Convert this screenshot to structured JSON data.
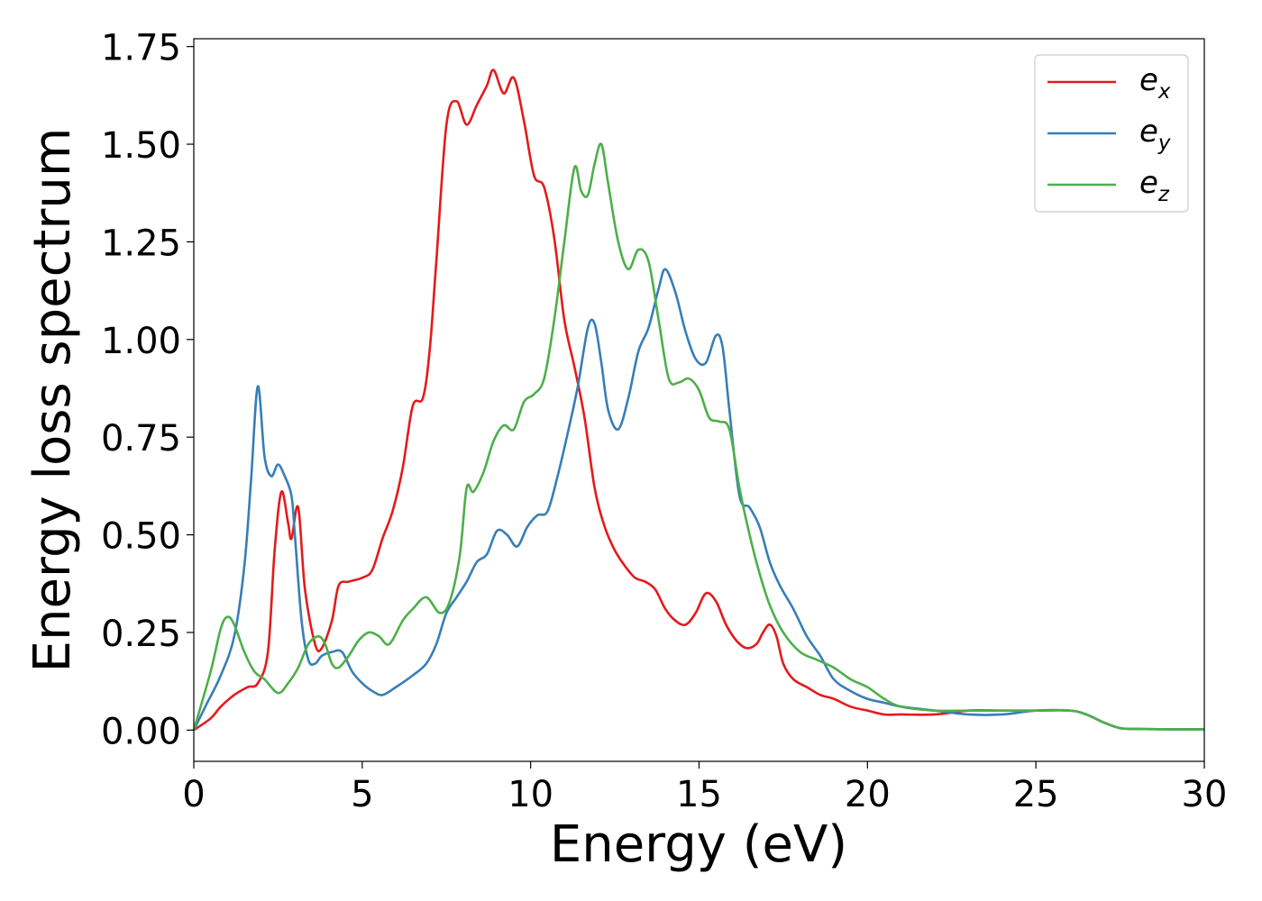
{
  "chart_data": {
    "type": "line",
    "xlabel": "Energy (eV)",
    "ylabel": "Energy loss spectrum",
    "xlim": [
      0,
      30
    ],
    "ylim": [
      -0.08,
      1.77
    ],
    "xticks": [
      0,
      5,
      10,
      15,
      20,
      25,
      30
    ],
    "xtick_labels": [
      "0",
      "5",
      "10",
      "15",
      "20",
      "25",
      "30"
    ],
    "yticks": [
      0.0,
      0.25,
      0.5,
      0.75,
      1.0,
      1.25,
      1.5,
      1.75
    ],
    "ytick_labels": [
      "0.00",
      "0.25",
      "0.50",
      "0.75",
      "1.00",
      "1.25",
      "1.50",
      "1.75"
    ],
    "grid": false,
    "legend_position": "top-right",
    "series": [
      {
        "name": "e_x",
        "label_base": "e",
        "label_sub": "x",
        "color": "#e41a1c",
        "x": [
          0,
          0.5,
          0.8,
          1.2,
          1.6,
          1.9,
          2.2,
          2.4,
          2.6,
          2.8,
          2.9,
          3.1,
          3.3,
          3.6,
          3.8,
          4.1,
          4.3,
          4.6,
          5.0,
          5.3,
          5.6,
          5.9,
          6.2,
          6.5,
          6.8,
          7.0,
          7.2,
          7.5,
          7.8,
          8.1,
          8.4,
          8.7,
          8.9,
          9.2,
          9.5,
          9.8,
          10.1,
          10.4,
          10.7,
          11.0,
          11.3,
          11.6,
          11.9,
          12.2,
          12.5,
          12.8,
          13.1,
          13.4,
          13.7,
          14.0,
          14.3,
          14.6,
          14.9,
          15.2,
          15.5,
          15.8,
          16.1,
          16.4,
          16.7,
          16.9,
          17.1,
          17.3,
          17.5,
          17.8,
          18.2,
          18.6,
          19.0,
          19.5,
          20.0,
          20.5,
          21.0,
          22.0,
          23.0,
          24.0,
          25.0,
          26.0,
          26.5,
          27.0,
          27.5,
          28.0,
          29.0,
          30.0
        ],
        "y": [
          0,
          0.03,
          0.06,
          0.09,
          0.11,
          0.12,
          0.2,
          0.46,
          0.61,
          0.53,
          0.49,
          0.57,
          0.36,
          0.22,
          0.21,
          0.28,
          0.37,
          0.38,
          0.39,
          0.41,
          0.49,
          0.56,
          0.67,
          0.83,
          0.85,
          0.97,
          1.2,
          1.55,
          1.61,
          1.55,
          1.6,
          1.65,
          1.69,
          1.63,
          1.67,
          1.56,
          1.42,
          1.39,
          1.26,
          1.05,
          0.93,
          0.8,
          0.62,
          0.52,
          0.46,
          0.42,
          0.39,
          0.38,
          0.36,
          0.31,
          0.28,
          0.27,
          0.3,
          0.35,
          0.33,
          0.27,
          0.23,
          0.21,
          0.22,
          0.25,
          0.27,
          0.24,
          0.17,
          0.13,
          0.11,
          0.09,
          0.08,
          0.06,
          0.05,
          0.04,
          0.04,
          0.04,
          0.05,
          0.05,
          0.05,
          0.05,
          0.04,
          0.02,
          0.005,
          0.003,
          0.002,
          0.002
        ]
      },
      {
        "name": "e_y",
        "label_base": "e",
        "label_sub": "y",
        "color": "#377eb8",
        "x": [
          0,
          0.4,
          0.8,
          1.2,
          1.5,
          1.7,
          1.9,
          2.1,
          2.3,
          2.5,
          2.7,
          2.9,
          3.0,
          3.2,
          3.4,
          3.6,
          3.8,
          4.1,
          4.4,
          4.7,
          5.0,
          5.3,
          5.6,
          6.0,
          6.5,
          6.9,
          7.2,
          7.5,
          7.8,
          8.1,
          8.4,
          8.7,
          9.0,
          9.3,
          9.6,
          9.9,
          10.2,
          10.5,
          10.8,
          11.1,
          11.4,
          11.7,
          11.9,
          12.1,
          12.3,
          12.6,
          12.9,
          13.2,
          13.5,
          13.8,
          14.0,
          14.3,
          14.6,
          14.9,
          15.2,
          15.5,
          15.7,
          15.9,
          16.2,
          16.5,
          16.8,
          17.1,
          17.4,
          17.8,
          18.2,
          18.6,
          19.0,
          19.5,
          20.0,
          20.5,
          21.0,
          22.0,
          23.0,
          24.0,
          25.0,
          26.0,
          26.5,
          27.0,
          27.5,
          28.0,
          29.0,
          30.0
        ],
        "y": [
          0,
          0.07,
          0.14,
          0.24,
          0.42,
          0.64,
          0.88,
          0.7,
          0.65,
          0.68,
          0.65,
          0.6,
          0.5,
          0.28,
          0.18,
          0.17,
          0.19,
          0.2,
          0.2,
          0.15,
          0.12,
          0.1,
          0.09,
          0.11,
          0.14,
          0.17,
          0.22,
          0.3,
          0.34,
          0.38,
          0.43,
          0.45,
          0.51,
          0.5,
          0.47,
          0.52,
          0.55,
          0.56,
          0.65,
          0.76,
          0.88,
          1.03,
          1.04,
          0.94,
          0.82,
          0.77,
          0.85,
          0.97,
          1.03,
          1.13,
          1.18,
          1.12,
          1.02,
          0.95,
          0.94,
          1.01,
          0.98,
          0.82,
          0.6,
          0.57,
          0.52,
          0.43,
          0.37,
          0.31,
          0.24,
          0.19,
          0.13,
          0.1,
          0.08,
          0.07,
          0.06,
          0.05,
          0.04,
          0.04,
          0.05,
          0.05,
          0.04,
          0.02,
          0.005,
          0.003,
          0.002,
          0.002
        ]
      },
      {
        "name": "e_z",
        "label_base": "e",
        "label_sub": "z",
        "color": "#4daf4a",
        "x": [
          0,
          0.5,
          0.8,
          1.0,
          1.2,
          1.5,
          1.8,
          2.1,
          2.5,
          2.8,
          3.1,
          3.4,
          3.7,
          3.9,
          4.1,
          4.3,
          4.6,
          4.9,
          5.2,
          5.5,
          5.8,
          6.2,
          6.5,
          6.9,
          7.3,
          7.6,
          7.9,
          8.1,
          8.3,
          8.6,
          8.9,
          9.2,
          9.5,
          9.8,
          10.1,
          10.4,
          10.7,
          11.0,
          11.3,
          11.5,
          11.7,
          11.9,
          12.1,
          12.3,
          12.6,
          12.9,
          13.2,
          13.5,
          13.8,
          14.1,
          14.4,
          14.7,
          15.0,
          15.3,
          15.6,
          15.9,
          16.2,
          16.5,
          16.8,
          17.1,
          17.5,
          18.0,
          18.5,
          19.0,
          19.5,
          20.0,
          20.5,
          21.0,
          22.0,
          23.0,
          24.0,
          25.0,
          26.0,
          26.5,
          27.0,
          27.5,
          28.0,
          29.0,
          30.0
        ],
        "y": [
          0,
          0.15,
          0.26,
          0.29,
          0.27,
          0.2,
          0.15,
          0.13,
          0.095,
          0.12,
          0.16,
          0.22,
          0.24,
          0.22,
          0.17,
          0.16,
          0.19,
          0.23,
          0.25,
          0.24,
          0.22,
          0.28,
          0.31,
          0.34,
          0.3,
          0.33,
          0.45,
          0.62,
          0.61,
          0.66,
          0.74,
          0.78,
          0.77,
          0.84,
          0.86,
          0.9,
          1.05,
          1.25,
          1.44,
          1.38,
          1.37,
          1.45,
          1.5,
          1.4,
          1.25,
          1.18,
          1.23,
          1.2,
          1.05,
          0.9,
          0.89,
          0.9,
          0.87,
          0.8,
          0.79,
          0.77,
          0.62,
          0.5,
          0.4,
          0.32,
          0.25,
          0.2,
          0.18,
          0.16,
          0.13,
          0.11,
          0.08,
          0.06,
          0.05,
          0.05,
          0.05,
          0.05,
          0.05,
          0.04,
          0.02,
          0.005,
          0.003,
          0.002,
          0.002
        ]
      }
    ]
  }
}
